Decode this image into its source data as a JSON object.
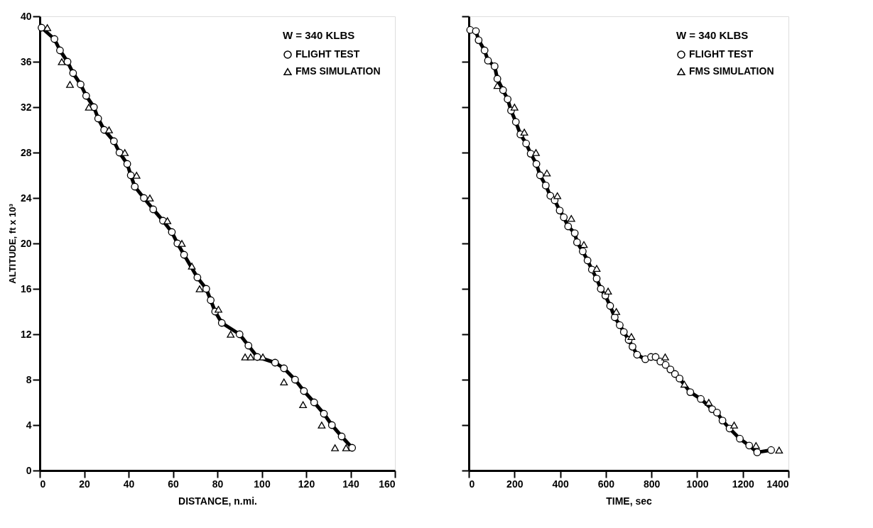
{
  "chart_data": [
    {
      "type": "line",
      "xlabel": "DISTANCE, n.mi.",
      "ylabel": "ALTITUDE, ft x 10³",
      "legend_title": "W = 340 KLBS",
      "legend": "top right",
      "grid": false,
      "xlim": [
        0,
        160
      ],
      "xticks": [
        0,
        20,
        40,
        60,
        80,
        100,
        120,
        140,
        160
      ],
      "ylim": [
        0,
        40
      ],
      "yticks": [
        0,
        4,
        8,
        12,
        16,
        20,
        24,
        28,
        32,
        36,
        40
      ],
      "series": [
        {
          "name": "FLIGHT TEST",
          "type": "line",
          "marker": "circle",
          "line_style": "solid",
          "color": "#000000",
          "x": [
            0.8,
            6.6,
            9.1,
            12.5,
            15,
            18.4,
            20.9,
            24.4,
            26.3,
            29,
            33.4,
            35.9,
            39.4,
            41,
            42.8,
            46.9,
            51.1,
            55.5,
            59.5,
            62,
            65,
            71,
            75,
            77,
            79,
            82,
            90,
            94,
            98,
            106,
            110,
            115,
            119,
            123.6,
            128,
            131.6,
            136,
            140.7
          ],
          "values": [
            39,
            38,
            37,
            36,
            35,
            34,
            33,
            32,
            31,
            30,
            29,
            28,
            27,
            26,
            25,
            24,
            23,
            22,
            21,
            20,
            19,
            17,
            16,
            15,
            14,
            13,
            12,
            11,
            10,
            9.5,
            9,
            8,
            7,
            6,
            5,
            4,
            3,
            2
          ]
        },
        {
          "name": "FMS SIMULATION",
          "type": "scatter",
          "marker": "triangle",
          "color": "#000000",
          "x": [
            3.4,
            9.9,
            13.6,
            22.1,
            31.2,
            38.3,
            43.6,
            49.6,
            57.5,
            64,
            68.5,
            72,
            80.5,
            86,
            92.5,
            95,
            100.5,
            110,
            118.6,
            127,
            133,
            138
          ],
          "values": [
            39,
            36,
            34,
            32,
            30,
            28,
            26,
            24,
            22,
            20,
            18,
            16,
            14.2,
            12,
            10,
            10,
            10,
            7.8,
            5.8,
            4,
            2,
            2
          ]
        }
      ]
    },
    {
      "type": "line",
      "xlabel": "TIME, sec",
      "legend_title": "W = 340 KLBS",
      "legend": "top right",
      "grid": false,
      "tick_labels": "x",
      "xlim": [
        0,
        1400
      ],
      "xticks": [
        0,
        200,
        400,
        600,
        800,
        1000,
        1200,
        1400
      ],
      "ylim": [
        0,
        40
      ],
      "yticks": [
        0,
        4,
        8,
        12,
        16,
        20,
        24,
        28,
        32,
        36,
        40
      ],
      "series": [
        {
          "name": "FLIGHT TEST",
          "type": "line",
          "marker": "circle",
          "line_style": "solid",
          "color": "#000000",
          "x": [
            6,
            31,
            43,
            69,
            84,
            113,
            125,
            150,
            170,
            185,
            206,
            226,
            251,
            271,
            296,
            312,
            337,
            357,
            376,
            398,
            416,
            435,
            464,
            474,
            499,
            520,
            539,
            560,
            578,
            598,
            619,
            639,
            661,
            679,
            700,
            717,
            737,
            773,
            798,
            818,
            839,
            862,
            883,
            903,
            923,
            970,
            1016,
            1066,
            1087,
            1111,
            1142,
            1187,
            1228,
            1263,
            1324
          ],
          "values": [
            38.8,
            38.7,
            37.9,
            37,
            36.1,
            35.6,
            34.5,
            33.5,
            32.7,
            31.7,
            30.7,
            29.6,
            28.8,
            27.9,
            27,
            26,
            25.1,
            24.2,
            23.8,
            22.9,
            22.3,
            21.5,
            20.9,
            20.1,
            19.3,
            18.5,
            17.7,
            16.9,
            16,
            15.4,
            14.5,
            13.5,
            12.8,
            12.2,
            11.5,
            10.9,
            10.2,
            9.8,
            10,
            10,
            9.6,
            9.3,
            8.9,
            8.5,
            8.1,
            6.9,
            6.3,
            5.4,
            5.1,
            4.4,
            3.7,
            2.8,
            2.2,
            1.6,
            1.8
          ]
        },
        {
          "name": "FMS SIMULATION",
          "type": "scatter",
          "marker": "triangle",
          "color": "#000000",
          "x": [
            125,
            200,
            243,
            294,
            342,
            388,
            449,
            504,
            560,
            610,
            646,
            712,
            860,
            944,
            1051,
            1162,
            1258,
            1359
          ],
          "values": [
            33.9,
            32,
            29.8,
            28,
            26.2,
            24.2,
            22.2,
            19.9,
            17.8,
            15.8,
            14,
            11.8,
            10,
            7.6,
            6,
            4,
            2.2,
            1.8
          ]
        }
      ]
    }
  ]
}
